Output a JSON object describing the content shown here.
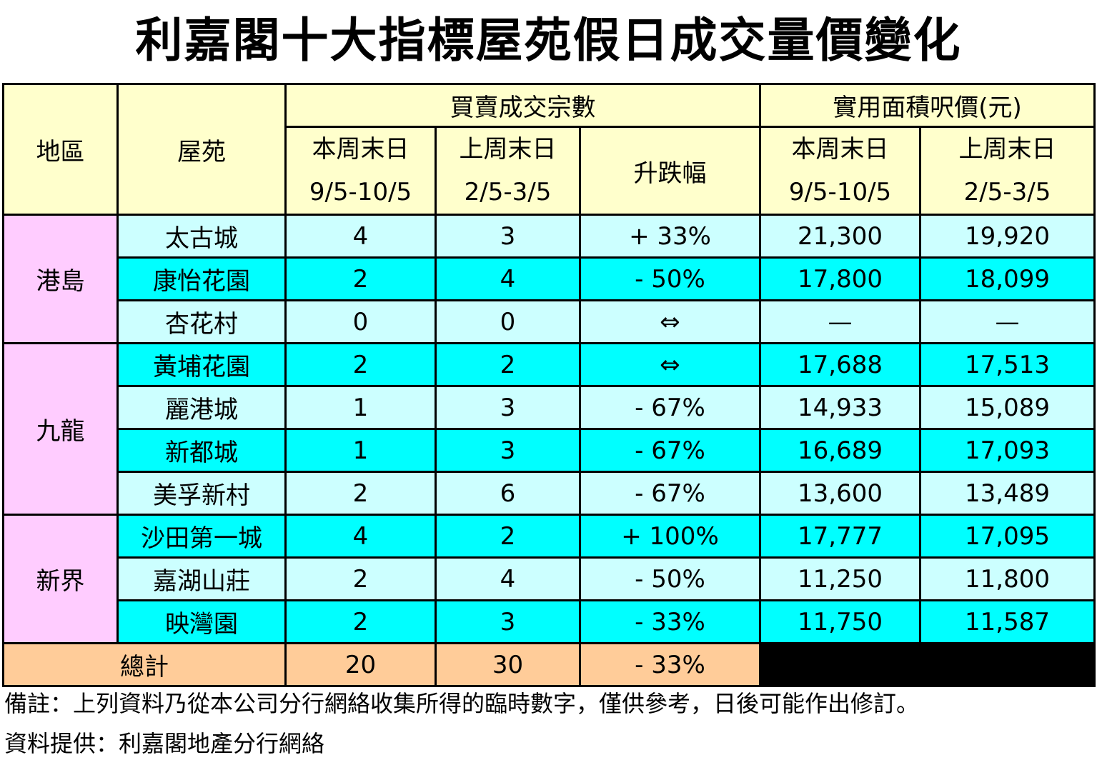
{
  "title": "利嘉閣十大指標屋苑假日成交量價變化",
  "header": {
    "district": "地區",
    "estate": "屋苑",
    "transactions_group": "買賣成交宗數",
    "price_group": "實用面積呎價(元)",
    "this_weekend": "本周末日",
    "this_weekend_dates": "9/5-10/5",
    "last_weekend": "上周末日",
    "last_weekend_dates": "2/5-3/5",
    "change": "升跌幅"
  },
  "regions": [
    "港島",
    "九龍",
    "新界"
  ],
  "rows": [
    {
      "estate": "太古城",
      "this_tx": "4",
      "last_tx": "3",
      "change": "+ 33%",
      "this_price": "21,300",
      "last_price": "19,920"
    },
    {
      "estate": "康怡花園",
      "this_tx": "2",
      "last_tx": "4",
      "change": "- 50%",
      "this_price": "17,800",
      "last_price": "18,099"
    },
    {
      "estate": "杏花村",
      "this_tx": "0",
      "last_tx": "0",
      "change": "⇔",
      "this_price": "—",
      "last_price": "—"
    },
    {
      "estate": "黃埔花園",
      "this_tx": "2",
      "last_tx": "2",
      "change": "⇔",
      "this_price": "17,688",
      "last_price": "17,513"
    },
    {
      "estate": "麗港城",
      "this_tx": "1",
      "last_tx": "3",
      "change": "- 67%",
      "this_price": "14,933",
      "last_price": "15,089"
    },
    {
      "estate": "新都城",
      "this_tx": "1",
      "last_tx": "3",
      "change": "- 67%",
      "this_price": "16,689",
      "last_price": "17,093"
    },
    {
      "estate": "美孚新村",
      "this_tx": "2",
      "last_tx": "6",
      "change": "- 67%",
      "this_price": "13,600",
      "last_price": "13,489"
    },
    {
      "estate": "沙田第一城",
      "this_tx": "4",
      "last_tx": "2",
      "change": "+ 100%",
      "this_price": "17,777",
      "last_price": "17,095"
    },
    {
      "estate": "嘉湖山莊",
      "this_tx": "2",
      "last_tx": "4",
      "change": "- 50%",
      "this_price": "11,250",
      "last_price": "11,800"
    },
    {
      "estate": "映灣園",
      "this_tx": "2",
      "last_tx": "3",
      "change": "- 33%",
      "this_price": "11,750",
      "last_price": "11,587"
    }
  ],
  "total": {
    "label": "總計",
    "this_tx": "20",
    "last_tx": "30",
    "change": "- 33%"
  },
  "notes": {
    "remark": "備註：上列資料乃從本公司分行網絡收集所得的臨時數字，僅供參考，日後可能作出修訂。",
    "source": "資料提供：利嘉閣地產分行網絡"
  },
  "colors": {
    "header_bg": "#ffffcc",
    "region_bg": "#ffccff",
    "row_light": "#ccffff",
    "row_cyan": "#00ffff",
    "total_bg": "#ffcc99"
  }
}
